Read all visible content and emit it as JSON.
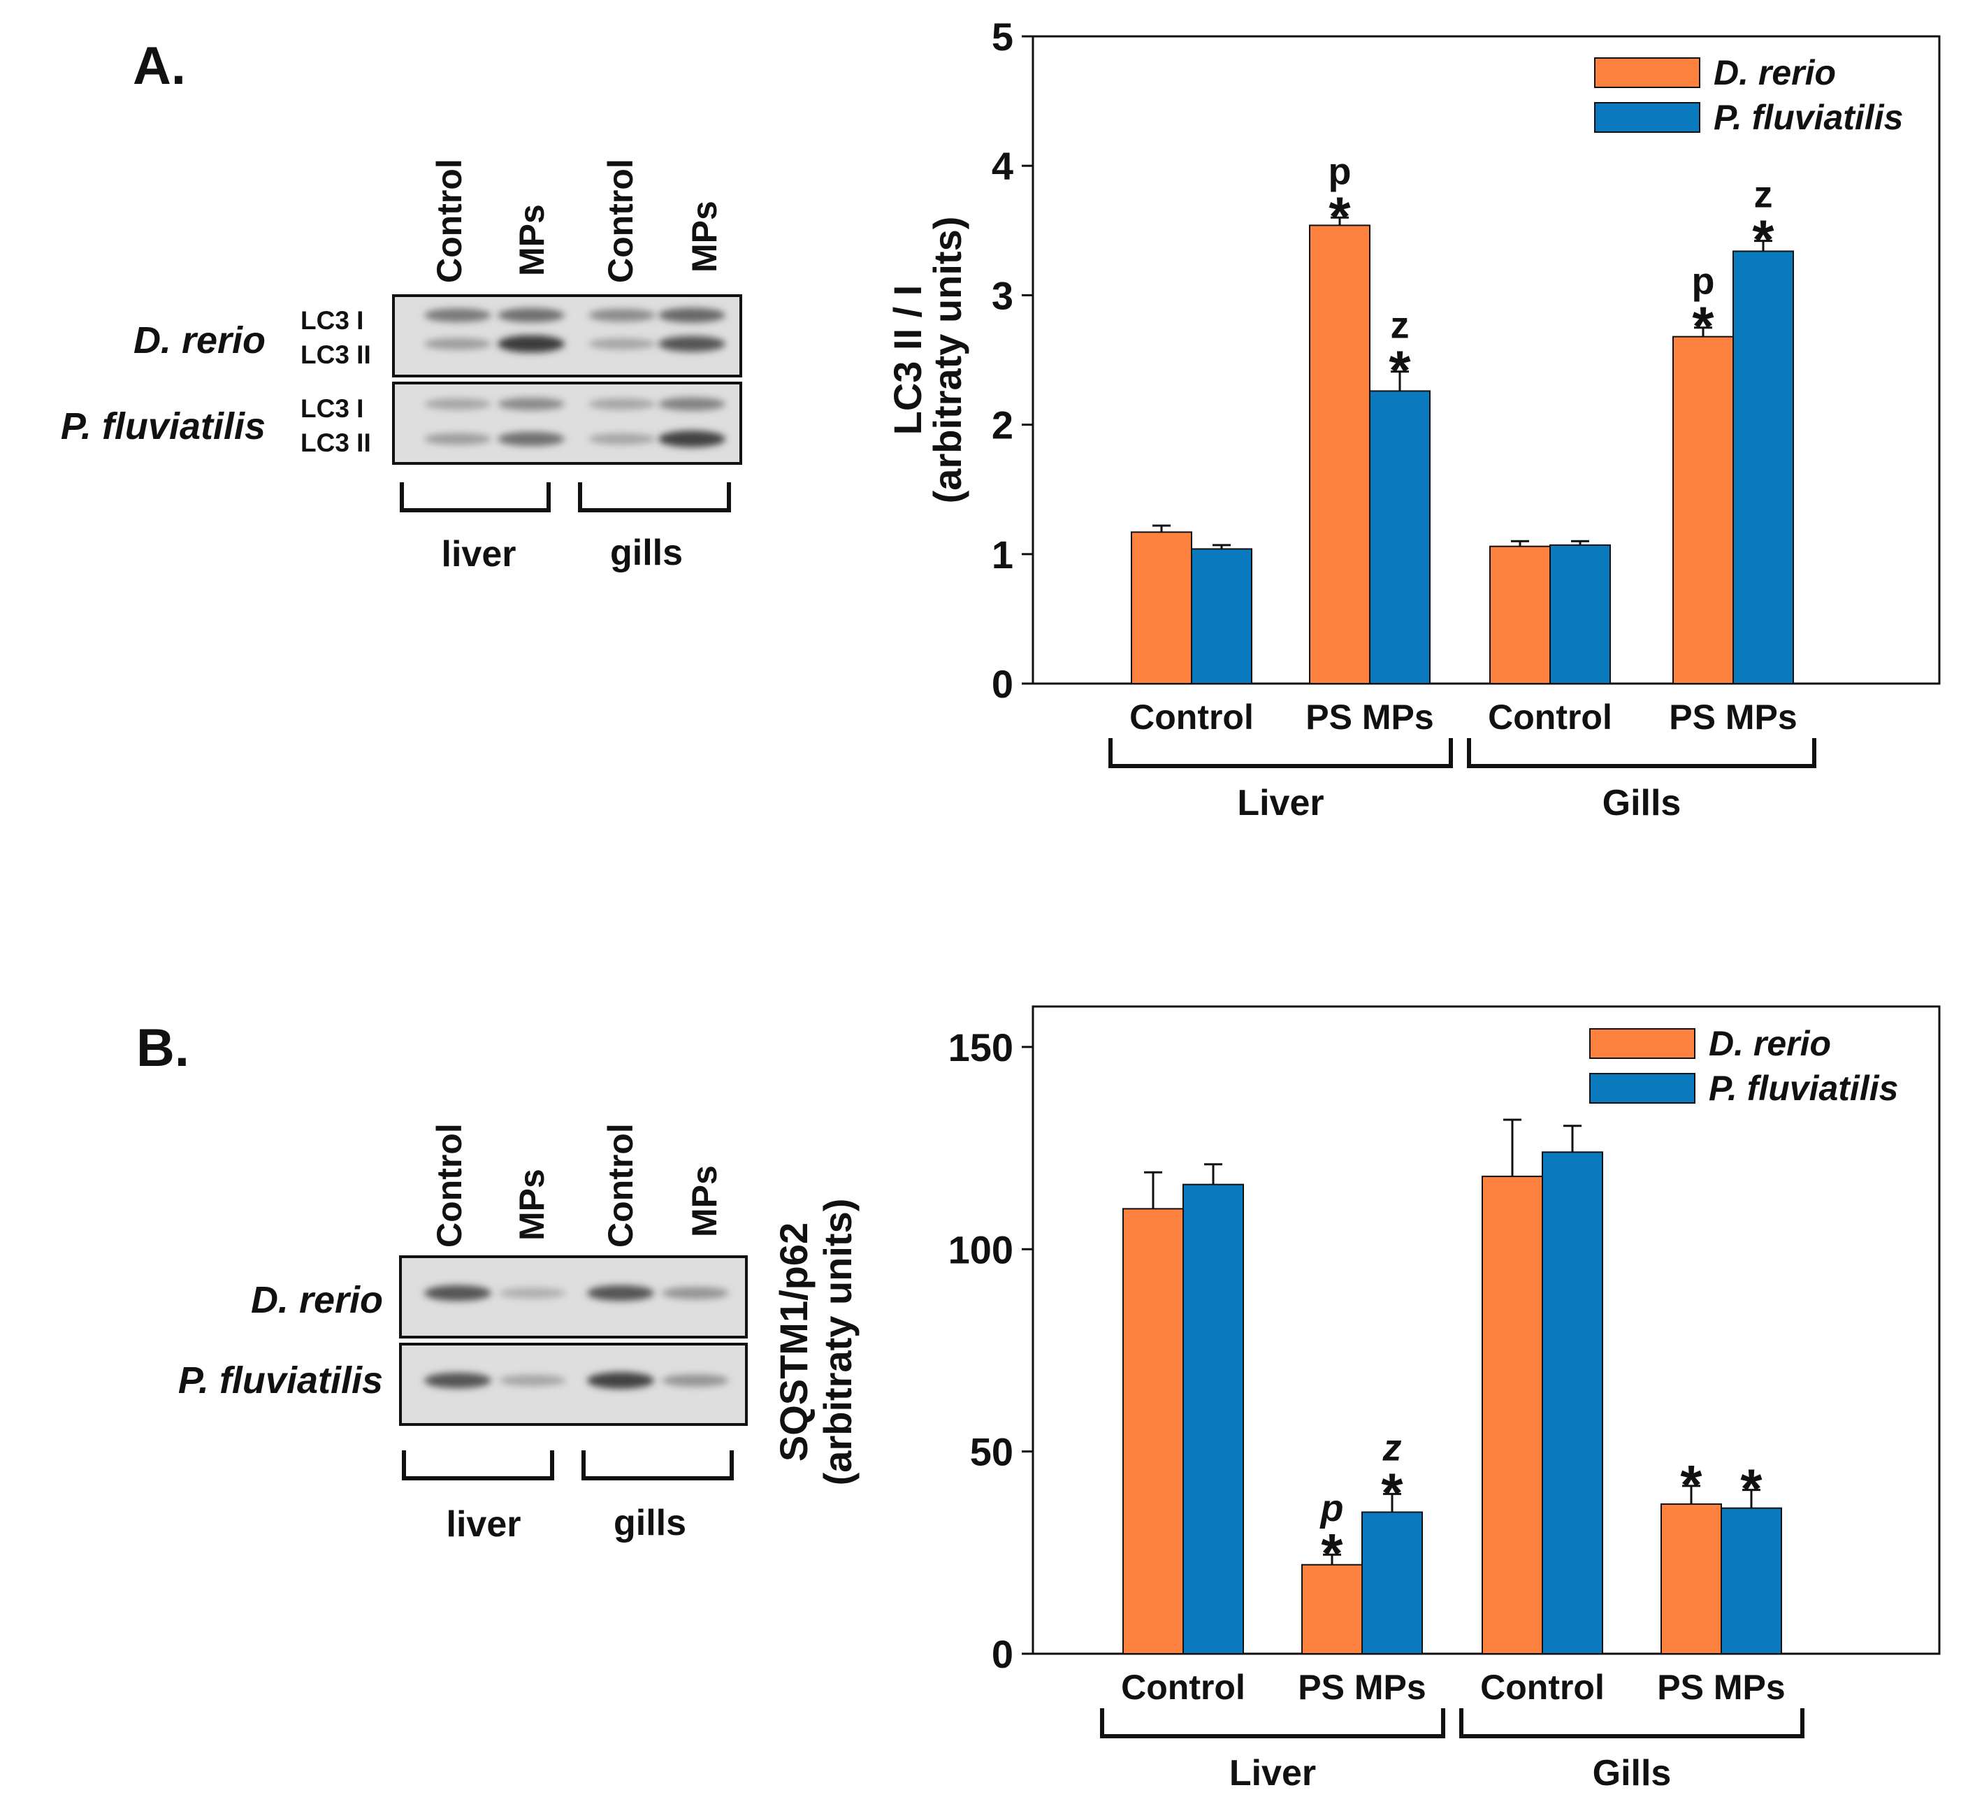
{
  "colors": {
    "d_rerio": "#fd8240",
    "p_fluviatilis": "#0b79be",
    "frame": "#111111",
    "blot_bg": "#dedede"
  },
  "panels": [
    {
      "letter": "A.",
      "blot": {
        "lanes": [
          "Control",
          "MPs",
          "Control",
          "MPs"
        ],
        "species": [
          "D. rerio",
          "P. fluviatilis"
        ],
        "bands": [
          "LC3 I",
          "LC3 II"
        ],
        "tissues": [
          "liver",
          "gills"
        ],
        "intensities": {
          "D. rerio": {
            "LC3 I": [
              0.55,
              0.6,
              0.45,
              0.65
            ],
            "LC3 II": [
              0.35,
              0.9,
              0.3,
              0.75
            ]
          },
          "P. fluviatilis": {
            "LC3 I": [
              0.3,
              0.45,
              0.3,
              0.5
            ],
            "LC3 II": [
              0.35,
              0.6,
              0.3,
              0.85
            ]
          }
        }
      }
    },
    {
      "letter": "B.",
      "blot": {
        "lanes": [
          "Control",
          "MPs",
          "Control",
          "MPs"
        ],
        "species": [
          "D. rerio",
          "P. fluviatilis"
        ],
        "bands": [],
        "tissues": [
          "liver",
          "gills"
        ],
        "intensities": {
          "D. rerio": [
            0.75,
            0.25,
            0.75,
            0.4
          ],
          "P. fluviatilis": [
            0.75,
            0.3,
            0.85,
            0.4
          ]
        }
      }
    }
  ],
  "chart_data": [
    {
      "type": "bar",
      "title": "",
      "xlabel": "",
      "ylabel": [
        "LC3 II / I",
        "(arbitraty units)"
      ],
      "ylim": [
        0,
        5
      ],
      "yticks": [
        0,
        1,
        2,
        3,
        4,
        5
      ],
      "categories": [
        "Control",
        "PS MPs",
        "Control",
        "PS MPs"
      ],
      "groups": [
        {
          "label": "Liver",
          "categories": [
            0,
            1
          ]
        },
        {
          "label": "Gills",
          "categories": [
            2,
            3
          ]
        }
      ],
      "series": [
        {
          "name": "D. rerio",
          "values": [
            1.17,
            3.54,
            1.06,
            2.68
          ],
          "errors": [
            0.05,
            0.06,
            0.04,
            0.07
          ],
          "annotations": [
            null,
            {
              "letter": "p",
              "star": "*"
            },
            null,
            {
              "letter": "p",
              "star": "*"
            }
          ]
        },
        {
          "name": "P. fluviatilis",
          "values": [
            1.04,
            2.26,
            1.07,
            3.34
          ],
          "errors": [
            0.03,
            0.15,
            0.03,
            0.08
          ],
          "annotations": [
            null,
            {
              "letter": "z",
              "star": "*"
            },
            null,
            {
              "letter": "z",
              "star": "*"
            }
          ]
        }
      ],
      "legend": "top-right",
      "grid": false
    },
    {
      "type": "bar",
      "title": "",
      "xlabel": "",
      "ylabel": [
        "SQSTM1/p62",
        "(arbitraty units)"
      ],
      "ylim": [
        0,
        160
      ],
      "yticks": [
        0,
        50,
        100,
        150
      ],
      "categories": [
        "Control",
        "PS MPs",
        "Control",
        "PS MPs"
      ],
      "groups": [
        {
          "label": "Liver",
          "categories": [
            0,
            1
          ]
        },
        {
          "label": "Gills",
          "categories": [
            2,
            3
          ]
        }
      ],
      "series": [
        {
          "name": "D. rerio",
          "values": [
            110,
            22,
            118,
            37
          ],
          "errors": [
            9,
            2.5,
            14,
            4.5
          ],
          "annotations": [
            null,
            {
              "letter": "p",
              "star": "*"
            },
            null,
            {
              "letter": "",
              "star": "*"
            }
          ]
        },
        {
          "name": "P. fluviatilis",
          "values": [
            116,
            35,
            124,
            36
          ],
          "errors": [
            5,
            4.5,
            6.5,
            4.5
          ],
          "annotations": [
            null,
            {
              "letter": "z",
              "star": "*"
            },
            null,
            {
              "letter": "",
              "star": "*"
            }
          ]
        }
      ],
      "legend": "top-right",
      "grid": false
    }
  ]
}
